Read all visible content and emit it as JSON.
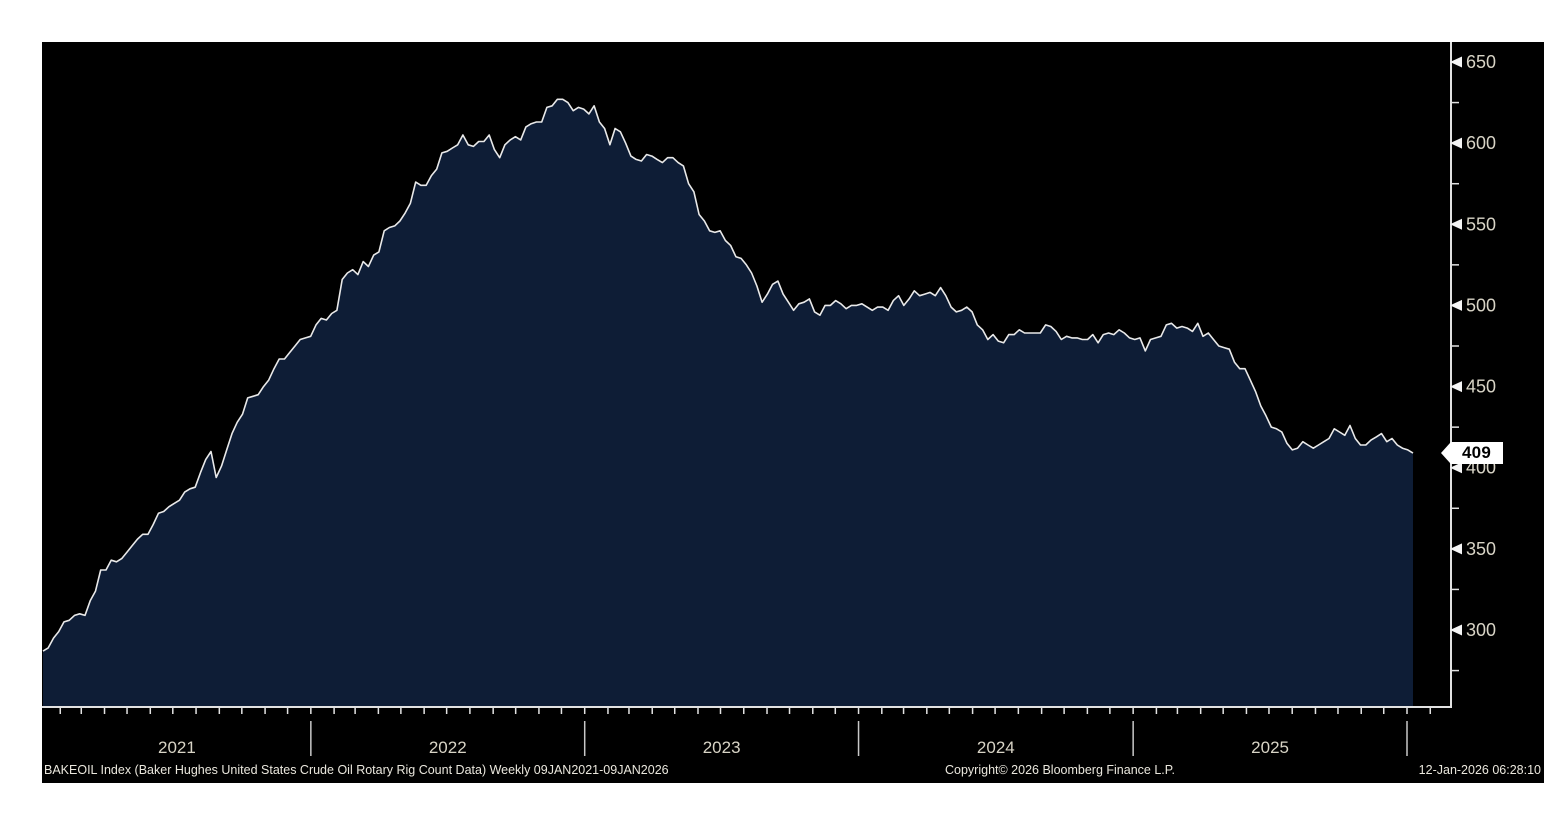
{
  "colors": {
    "background": "#ffffff",
    "panel_bg": "#000000",
    "area_fill": "#0e1d36",
    "line": "#e9e9e9",
    "axis": "#e2e2e2",
    "tick_arrow": "#f5f5f5",
    "tick_label": "#d8d4c6",
    "year_separator": "#c8c8c8",
    "badge_bg": "#ffffff",
    "badge_text": "#000000",
    "footer_text": "#eae7dd"
  },
  "y_axis": {
    "last_value_label": "409"
  },
  "footer": {
    "left": "BAKEOIL Index (Baker Hughes United States Crude Oil Rotary Rig Count Data) Weekly 09JAN2021-09JAN2026",
    "copyright": "Copyright© 2026 Bloomberg Finance L.P.",
    "timestamp": "12-Jan-2026 06:28:10"
  },
  "chart_data": {
    "type": "area",
    "title": "BAKEOIL Index (Baker Hughes United States Crude Oil Rotary Rig Count Data) Weekly 09JAN2021-09JAN2026",
    "x_start": "2021-01-09",
    "x_end": "2026-01-09",
    "frequency": "weekly",
    "points": 262,
    "ylim": [
      252,
      662
    ],
    "grid": "off",
    "legend": "none",
    "y_ticks_major": [
      650,
      600,
      550,
      500,
      450,
      400,
      350,
      300
    ],
    "y_ticks_minor": [
      625,
      575,
      525,
      475,
      425,
      375,
      325,
      275
    ],
    "x_tick_interval": "monthly",
    "x_year_labels": [
      "2021",
      "2022",
      "2023",
      "2024",
      "2025"
    ],
    "last_value": 409,
    "values": [
      287,
      289,
      295,
      299,
      305,
      306,
      309,
      310,
      309,
      318,
      324,
      337,
      337,
      343,
      342,
      344,
      348,
      352,
      356,
      359,
      359,
      365,
      372,
      373,
      376,
      378,
      380,
      385,
      387,
      388,
      397,
      405,
      410,
      394,
      401,
      411,
      421,
      428,
      433,
      443,
      444,
      445,
      450,
      454,
      461,
      467,
      467,
      471,
      475,
      479,
      480,
      481,
      488,
      492,
      491,
      495,
      497,
      516,
      520,
      522,
      519,
      527,
      524,
      531,
      533,
      546,
      548,
      549,
      552,
      557,
      563,
      576,
      574,
      574,
      580,
      584,
      594,
      595,
      597,
      599,
      605,
      599,
      598,
      601,
      601,
      605,
      596,
      591,
      599,
      602,
      604,
      602,
      610,
      612,
      613,
      613,
      622,
      623,
      627,
      627,
      625,
      620,
      622,
      621,
      618,
      623,
      613,
      609,
      599,
      609,
      607,
      600,
      592,
      590,
      589,
      593,
      592,
      590,
      588,
      591,
      591,
      588,
      586,
      575,
      570,
      556,
      552,
      546,
      545,
      546,
      540,
      537,
      530,
      529,
      525,
      520,
      512,
      502,
      507,
      513,
      515,
      507,
      502,
      497,
      501,
      502,
      504,
      496,
      494,
      500,
      500,
      503,
      501,
      498,
      500,
      500,
      501,
      499,
      497,
      499,
      499,
      497,
      503,
      506,
      500,
      504,
      509,
      506,
      507,
      508,
      506,
      511,
      506,
      499,
      496,
      497,
      499,
      496,
      488,
      485,
      479,
      482,
      478,
      477,
      482,
      482,
      485,
      483,
      483,
      483,
      483,
      488,
      487,
      484,
      479,
      481,
      480,
      480,
      479,
      479,
      482,
      477,
      482,
      483,
      482,
      485,
      483,
      480,
      479,
      480,
      472,
      479,
      480,
      481,
      488,
      489,
      486,
      487,
      486,
      484,
      489,
      481,
      483,
      479,
      475,
      474,
      473,
      465,
      461,
      461,
      454,
      447,
      438,
      432,
      425,
      424,
      422,
      415,
      411,
      412,
      416,
      414,
      412,
      414,
      416,
      418,
      424,
      422,
      420,
      426,
      418,
      414,
      414,
      417,
      419,
      421,
      416,
      418,
      414,
      412,
      411,
      409
    ]
  }
}
